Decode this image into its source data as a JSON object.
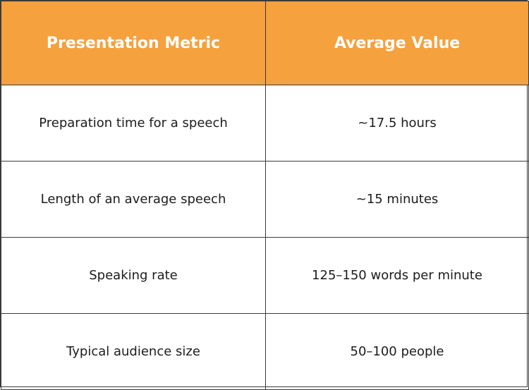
{
  "table": {
    "headers": [
      "Presentation Metric",
      "Average Value"
    ],
    "rows": [
      [
        "Preparation time for a speech",
        "~17.5 hours"
      ],
      [
        "Length of an average speech",
        "~15 minutes"
      ],
      [
        "Speaking rate",
        "125–150 words per minute"
      ],
      [
        "Typical audience size",
        "50–100 people"
      ]
    ]
  },
  "colors": {
    "header_background": "#f5a13d",
    "header_text": "#ffffff",
    "body_text": "#1c1c1c",
    "border": "#3a3a3a"
  }
}
